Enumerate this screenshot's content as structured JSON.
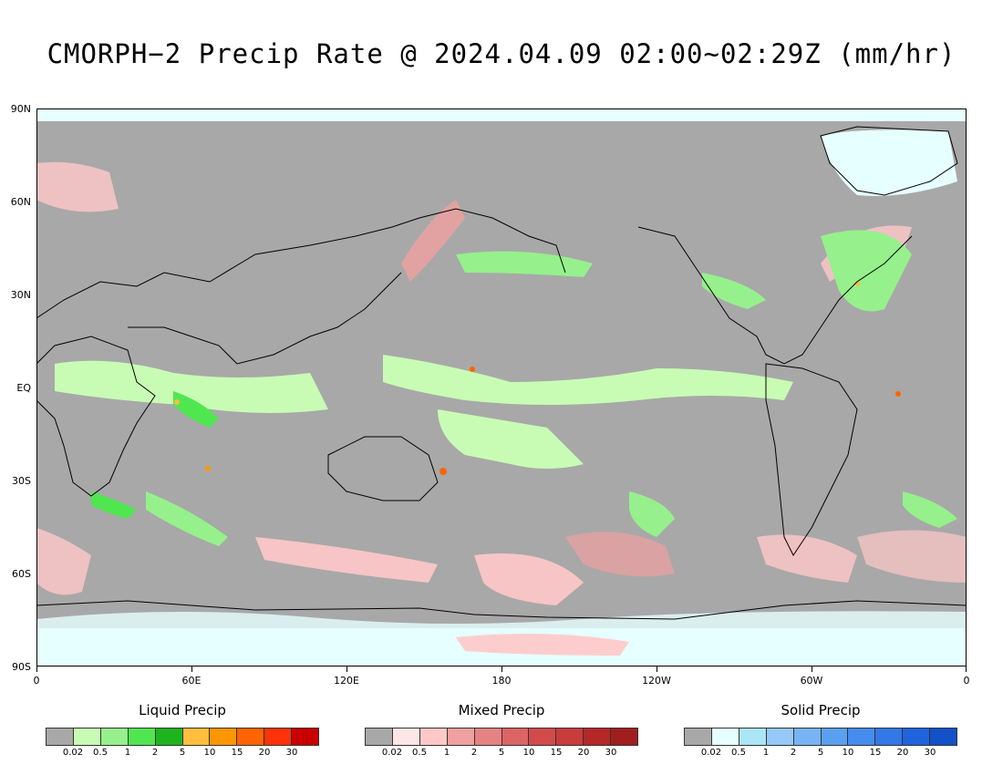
{
  "title": "CMORPH−2 Precip Rate @ 2024.04.09 02:00~02:29Z (mm/hr)",
  "lat_labels": [
    "90N",
    "60N",
    "30N",
    "EQ",
    "30S",
    "60S",
    "90S"
  ],
  "lon_labels": [
    "0",
    "60E",
    "120E",
    "180",
    "120W",
    "60W",
    "0"
  ],
  "legends": [
    {
      "title": "Liquid Precip",
      "colors": [
        "#a8a8a8",
        "#c8fcb4",
        "#96f08c",
        "#50e650",
        "#1eb41e",
        "#ffbe3c",
        "#ff9600",
        "#ff6400",
        "#ff320a",
        "#c80000"
      ],
      "ticks": [
        "0.02",
        "0.5",
        "1",
        "2",
        "5",
        "10",
        "15",
        "20",
        "30"
      ]
    },
    {
      "title": "Mixed Precip",
      "colors": [
        "#a8a8a8",
        "#ffe6e6",
        "#ffc8c8",
        "#f0a0a0",
        "#e68282",
        "#dc6464",
        "#d24b4b",
        "#c83c3c",
        "#b42828",
        "#a01e1e"
      ],
      "ticks": [
        "0.02",
        "0.5",
        "1",
        "2",
        "5",
        "10",
        "15",
        "20",
        "30"
      ]
    },
    {
      "title": "Solid Precip",
      "colors": [
        "#a8a8a8",
        "#e6ffff",
        "#aae6f5",
        "#96c8fa",
        "#78b4f5",
        "#5aa0f0",
        "#468cf0",
        "#3278e6",
        "#1e64dc",
        "#1450c8"
      ],
      "ticks": [
        "0.02",
        "0.5",
        "1",
        "2",
        "5",
        "10",
        "15",
        "20",
        "30"
      ]
    }
  ]
}
